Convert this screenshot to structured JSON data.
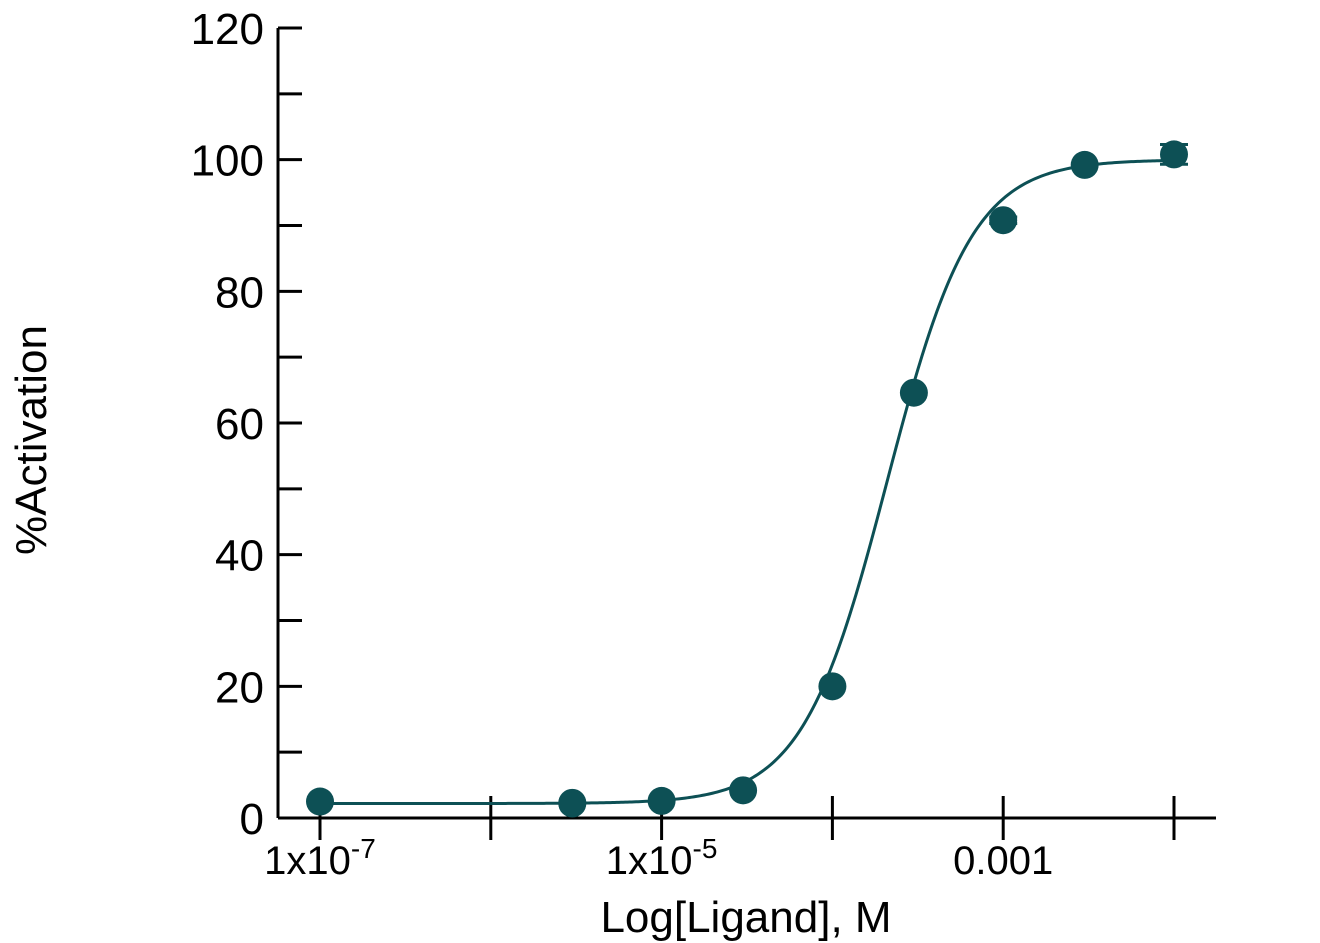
{
  "chart_data": {
    "type": "scatter",
    "title": "",
    "xlabel": "Log[Ligand],  M",
    "ylabel": "%Activation",
    "x_scale": "log10",
    "xlim": [
      1e-07,
      0.01
    ],
    "ylim": [
      0,
      120
    ],
    "y_ticks": [
      "0",
      "20",
      "40",
      "60",
      "80",
      "100",
      "120"
    ],
    "x_tick_labels": [
      {
        "value": 1e-07,
        "base": "1x10",
        "exp": "-7"
      },
      {
        "value": 1e-05,
        "base": "1x10",
        "exp": "-5"
      },
      {
        "value": 0.001,
        "base": "0.001",
        "exp": ""
      }
    ],
    "x_minor_ticks": [
      1e-07,
      1e-06,
      1e-05,
      0.0001,
      0.001,
      0.01
    ],
    "grid": false,
    "legend": "none",
    "color": "#0d5055",
    "series": [
      {
        "x": [
          1e-07,
          3e-06,
          3e-06,
          1e-05,
          3e-05,
          0.0001,
          0.0003,
          0.001,
          0.003,
          0.01
        ],
        "y": [
          2.5,
          2.2,
          2.3,
          2.6,
          4.2,
          20.0,
          64.6,
          90.8,
          99.2,
          100.8
        ],
        "error": [
          0,
          0,
          0,
          0,
          0,
          0,
          0,
          0.5,
          0,
          1.5
        ]
      }
    ],
    "fit": {
      "model": "four-parameter logistic",
      "bottom": 2.2,
      "top": 100.0,
      "log_ec50": -3.68,
      "hill": 1.75
    }
  }
}
